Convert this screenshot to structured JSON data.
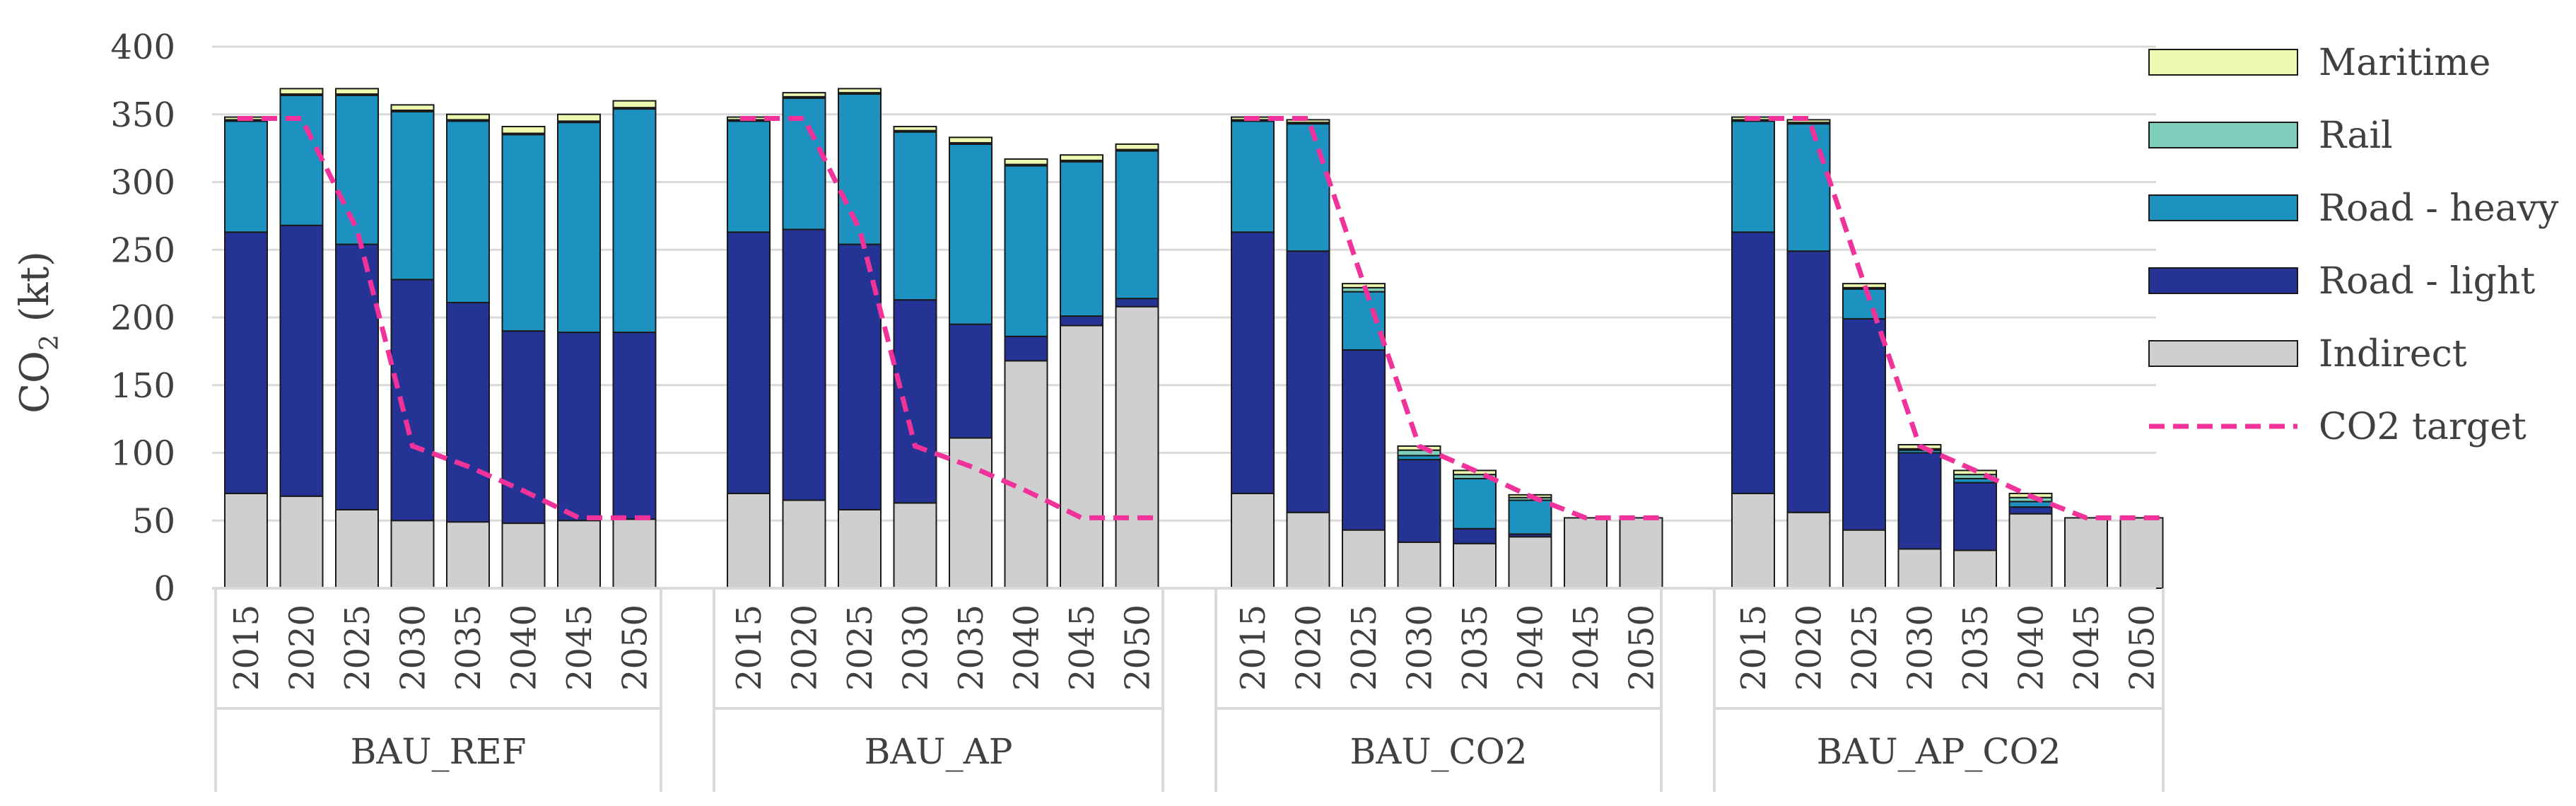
{
  "chart_data": {
    "type": "bar",
    "stacked": true,
    "title": "",
    "ylabel": {
      "main": "CO",
      "sub": "2",
      "unit": " (kt)"
    },
    "ylim": [
      0,
      400
    ],
    "yticks": [
      0,
      50,
      100,
      150,
      200,
      250,
      300,
      350,
      400
    ],
    "grid": true,
    "legend_position": "right",
    "years": [
      "2015",
      "2020",
      "2025",
      "2030",
      "2035",
      "2040",
      "2045",
      "2050"
    ],
    "stack_order": [
      "Indirect",
      "Road - light",
      "Road - heavy",
      "Rail",
      "Maritime"
    ],
    "colors": {
      "Indirect": "#d0cfcf",
      "Road - light": "#253494",
      "Road - heavy": "#1d91c0",
      "Rail": "#7fcdbb",
      "Maritime": "#edf8b1",
      "CO2 target": "#f0329a",
      "stroke": "#1a1a1a",
      "grid": "#d9d9d9"
    },
    "legend": [
      {
        "label": "Maritime",
        "kind": "box",
        "key": "Maritime"
      },
      {
        "label": "Rail",
        "kind": "box",
        "key": "Rail"
      },
      {
        "label": "Road - heavy",
        "kind": "box",
        "key": "Road - heavy"
      },
      {
        "label": "Road - light",
        "kind": "box",
        "key": "Road - light"
      },
      {
        "label": "Indirect",
        "kind": "box",
        "key": "Indirect"
      },
      {
        "label": "CO2 target",
        "kind": "line",
        "key": "CO2 target"
      }
    ],
    "groups": [
      {
        "name": "BAU_REF",
        "series": {
          "Indirect": [
            70,
            68,
            58,
            50,
            49,
            48,
            50,
            51
          ],
          "Road - light": [
            193,
            200,
            196,
            178,
            162,
            142,
            139,
            138
          ],
          "Road - heavy": [
            82,
            96,
            110,
            124,
            134,
            145,
            155,
            165
          ],
          "Rail": [
            1,
            1,
            1,
            1,
            1,
            1,
            1,
            1
          ],
          "Maritime": [
            2,
            4,
            4,
            4,
            4,
            5,
            5,
            5
          ]
        },
        "target": [
          347,
          347,
          265,
          105,
          90,
          72,
          52,
          52
        ]
      },
      {
        "name": "BAU_AP",
        "series": {
          "Indirect": [
            70,
            65,
            58,
            63,
            111,
            168,
            194,
            208
          ],
          "Road - light": [
            193,
            200,
            196,
            150,
            84,
            18,
            7,
            6
          ],
          "Road - heavy": [
            82,
            97,
            111,
            124,
            133,
            126,
            114,
            109
          ],
          "Rail": [
            1,
            1,
            1,
            1,
            1,
            1,
            1,
            1
          ],
          "Maritime": [
            2,
            3,
            3,
            3,
            4,
            4,
            4,
            4
          ]
        },
        "target": [
          347,
          347,
          265,
          105,
          90,
          72,
          52,
          52
        ]
      },
      {
        "name": "BAU_CO2",
        "series": {
          "Indirect": [
            70,
            56,
            43,
            34,
            33,
            38,
            52,
            52
          ],
          "Road - light": [
            193,
            193,
            133,
            61,
            11,
            2,
            0,
            0
          ],
          "Road - heavy": [
            82,
            94,
            43,
            3,
            37,
            25,
            0,
            0
          ],
          "Rail": [
            1,
            1,
            3,
            4,
            3,
            2,
            0,
            0
          ],
          "Maritime": [
            2,
            2,
            3,
            3,
            3,
            2,
            0,
            0
          ]
        },
        "target": [
          347,
          347,
          225,
          105,
          87,
          68,
          52,
          52
        ]
      },
      {
        "name": "BAU_AP_CO2",
        "series": {
          "Indirect": [
            70,
            56,
            43,
            29,
            28,
            55,
            52,
            52
          ],
          "Road - light": [
            193,
            193,
            156,
            71,
            50,
            5,
            0,
            0
          ],
          "Road - heavy": [
            82,
            94,
            22,
            2,
            3,
            4,
            0,
            0
          ],
          "Rail": [
            1,
            1,
            1,
            1,
            3,
            3,
            0,
            0
          ],
          "Maritime": [
            2,
            2,
            3,
            3,
            3,
            3,
            0,
            0
          ]
        },
        "target": [
          347,
          347,
          225,
          105,
          87,
          68,
          52,
          52
        ]
      }
    ]
  }
}
